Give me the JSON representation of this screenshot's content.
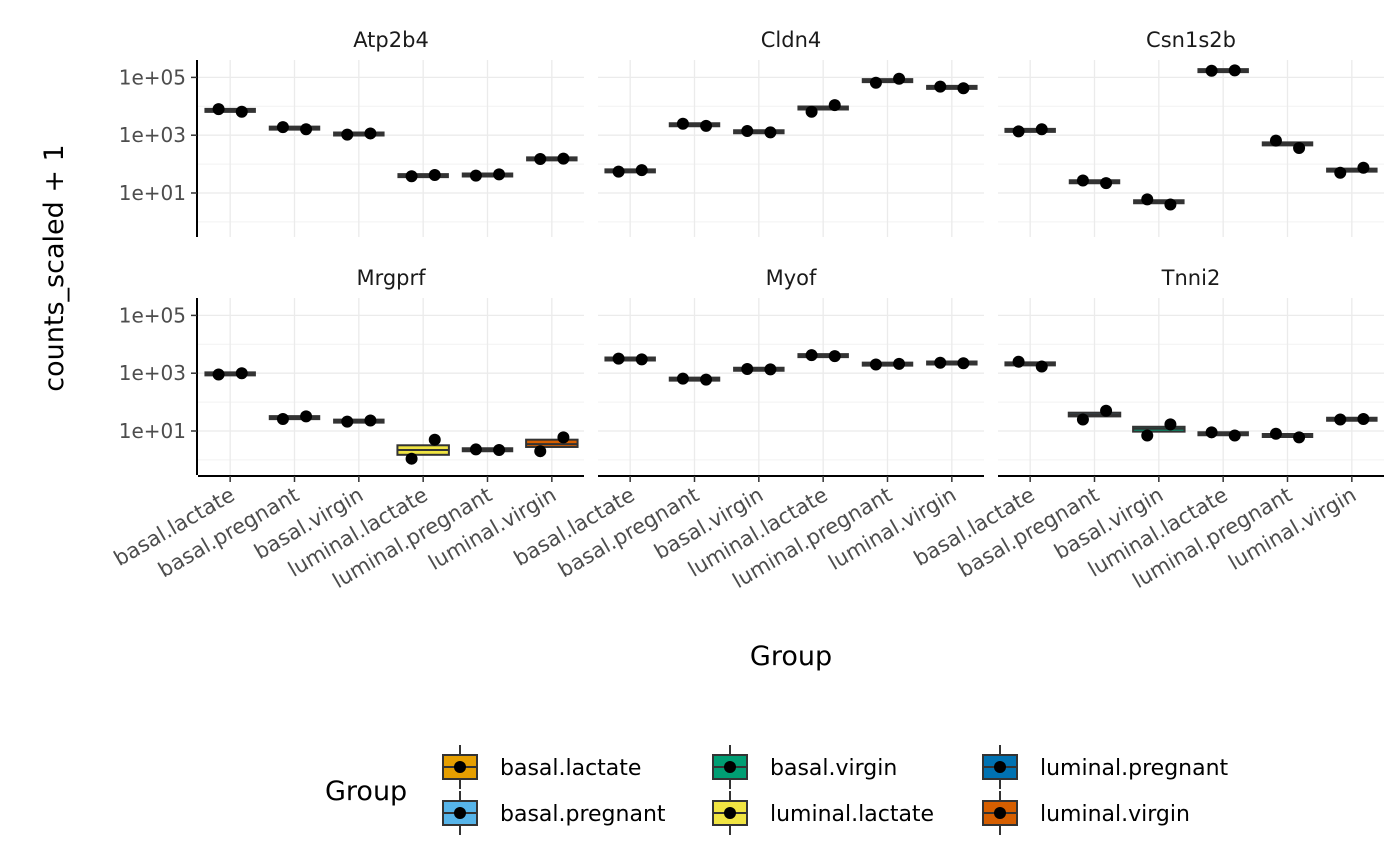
{
  "chart_data": {
    "type": "box",
    "scale": "log10",
    "ylabel": "counts_scaled + 1",
    "xlabel": "Group",
    "yticks": [
      "1e+01",
      "1e+03",
      "1e+05"
    ],
    "ytick_values": [
      10,
      1000,
      100000
    ],
    "ylim": [
      0.3,
      400000
    ],
    "grid": true,
    "categories": [
      "basal.lactate",
      "basal.pregnant",
      "basal.virgin",
      "luminal.lactate",
      "luminal.pregnant",
      "luminal.virgin"
    ],
    "facets": [
      {
        "name": "Atp2b4",
        "points": [
          [
            8000,
            6500
          ],
          [
            1900,
            1600
          ],
          [
            1050,
            1150
          ],
          [
            38,
            42
          ],
          [
            40,
            44
          ],
          [
            150,
            155
          ]
        ],
        "medians": [
          7200,
          1750,
          1100,
          40,
          42,
          152
        ],
        "box_ranges": [
          null,
          null,
          null,
          null,
          null,
          null
        ]
      },
      {
        "name": "Cldn4",
        "points": [
          [
            55,
            62
          ],
          [
            2500,
            2100
          ],
          [
            1400,
            1250
          ],
          [
            6500,
            11000
          ],
          [
            65000,
            90000
          ],
          [
            48000,
            42000
          ]
        ],
        "medians": [
          58,
          2300,
          1320,
          8700,
          77000,
          45000
        ],
        "box_ranges": [
          null,
          null,
          null,
          null,
          null,
          null
        ]
      },
      {
        "name": "Csn1s2b",
        "points": [
          [
            1350,
            1600
          ],
          [
            27,
            22
          ],
          [
            6,
            4
          ],
          [
            170000,
            175000
          ],
          [
            650,
            360
          ],
          [
            50,
            75
          ]
        ],
        "medians": [
          1470,
          24.5,
          5,
          172000,
          500,
          62
        ],
        "box_ranges": [
          null,
          null,
          null,
          null,
          null,
          null
        ]
      },
      {
        "name": "Mrgprf",
        "points": [
          [
            900,
            1000
          ],
          [
            26,
            32
          ],
          [
            21,
            23
          ],
          [
            1.1,
            5
          ],
          [
            2.3,
            2.2
          ],
          [
            2,
            6
          ]
        ],
        "medians": [
          950,
          29,
          22,
          2.2,
          2.25,
          3.5
        ],
        "box_ranges": [
          null,
          null,
          null,
          [
            1.5,
            3.2
          ],
          null,
          [
            2.8,
            5.0
          ]
        ]
      },
      {
        "name": "Myof",
        "points": [
          [
            3200,
            3000
          ],
          [
            650,
            600
          ],
          [
            1400,
            1350
          ],
          [
            4200,
            3900
          ],
          [
            2000,
            2100
          ],
          [
            2300,
            2200
          ]
        ],
        "medians": [
          3100,
          625,
          1375,
          4050,
          2050,
          2250
        ],
        "box_ranges": [
          null,
          null,
          null,
          null,
          null,
          null
        ]
      },
      {
        "name": "Tnni2",
        "points": [
          [
            2500,
            1700
          ],
          [
            25,
            50
          ],
          [
            7,
            17
          ],
          [
            9,
            7
          ],
          [
            8,
            6
          ],
          [
            25,
            26
          ]
        ],
        "medians": [
          2100,
          37,
          12,
          8,
          7,
          25.5
        ],
        "box_ranges": [
          null,
          [
            32,
            43
          ],
          [
            9.5,
            14
          ],
          null,
          null,
          null
        ]
      }
    ],
    "legend": {
      "title": "Group",
      "placement": "bottom",
      "items": [
        {
          "label": "basal.lactate",
          "color": "#E69F00"
        },
        {
          "label": "basal.pregnant",
          "color": "#56B4E9"
        },
        {
          "label": "basal.virgin",
          "color": "#009E73"
        },
        {
          "label": "luminal.lactate",
          "color": "#F0E442"
        },
        {
          "label": "luminal.pregnant",
          "color": "#0072B2"
        },
        {
          "label": "luminal.virgin",
          "color": "#D55E00"
        }
      ]
    }
  }
}
